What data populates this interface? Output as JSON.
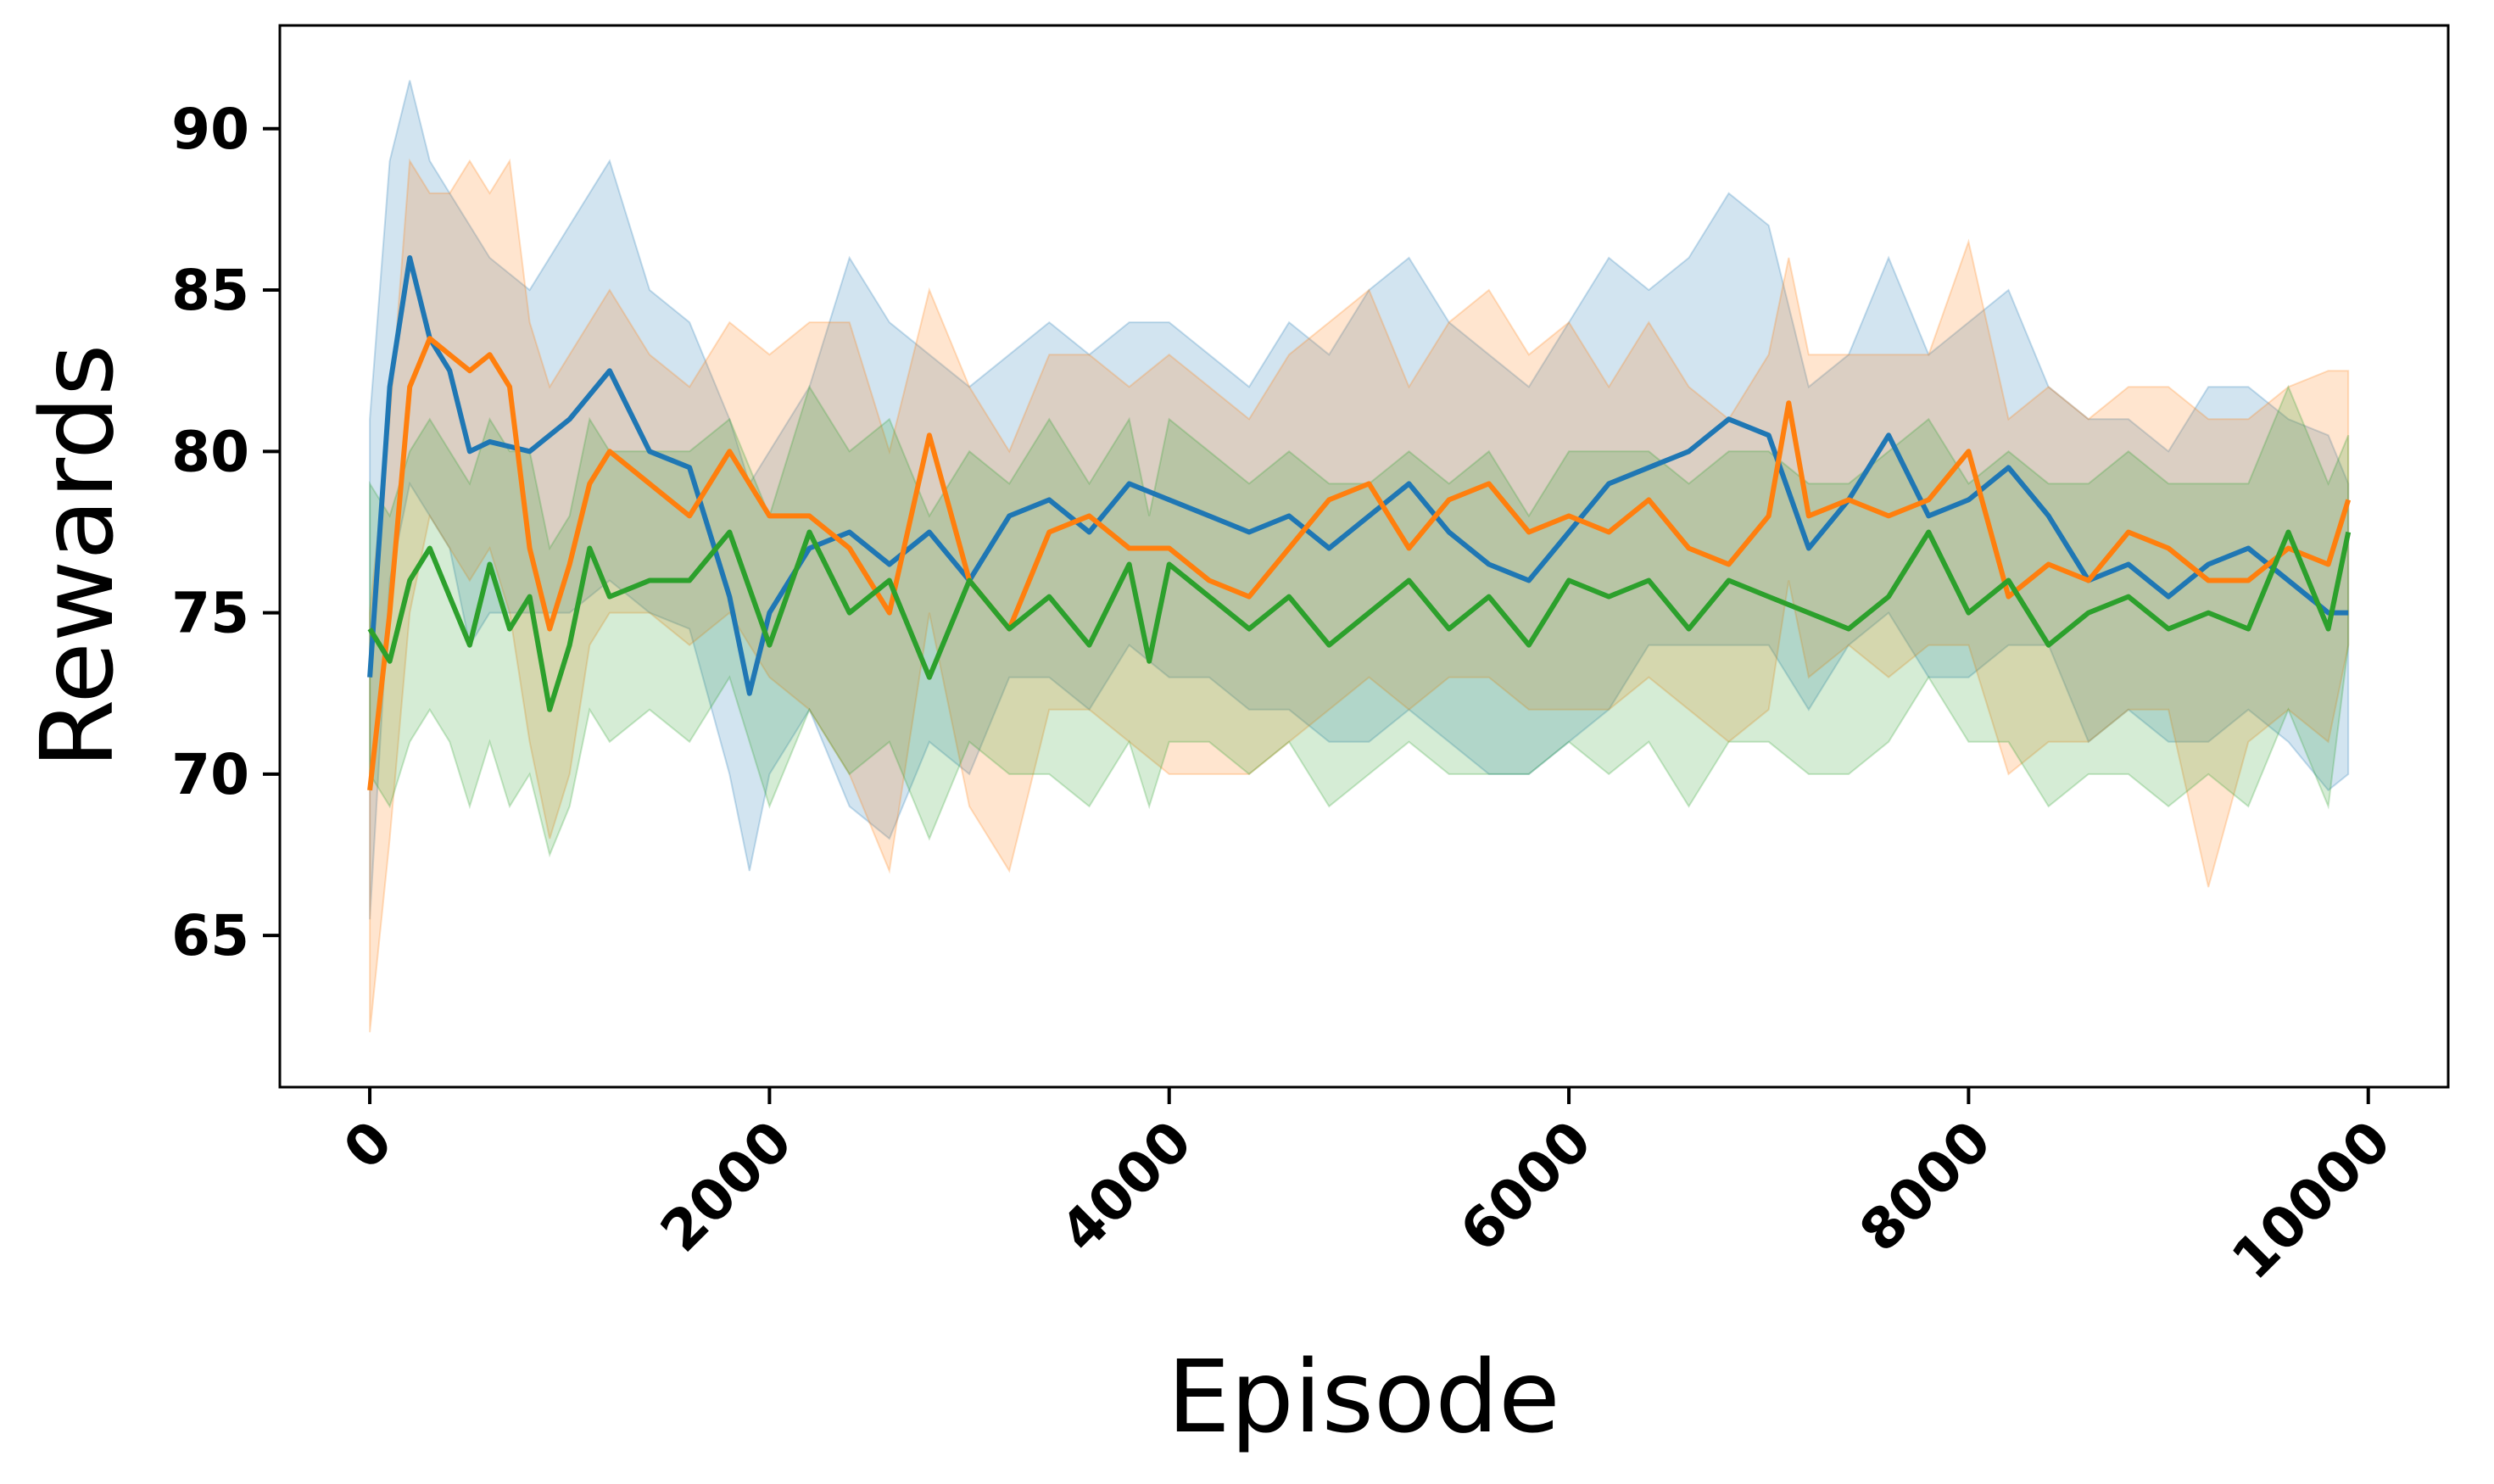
{
  "chart_data": {
    "type": "line",
    "xlabel": "Episode",
    "ylabel": "Rewards",
    "xlim": [
      -450,
      10400
    ],
    "ylim": [
      60.3,
      93.2
    ],
    "x_ticks": [
      0,
      2000,
      4000,
      6000,
      8000,
      10000
    ],
    "x_tick_labels": [
      "0",
      "2000",
      "4000",
      "6000",
      "8000",
      "10000"
    ],
    "y_ticks": [
      65,
      70,
      75,
      80,
      85,
      90
    ],
    "y_tick_labels": [
      "65",
      "70",
      "75",
      "80",
      "85",
      "90"
    ],
    "grid": false,
    "legend": "none",
    "series": [
      {
        "color": "#1f77b4",
        "x": [
          0,
          100,
          200,
          300,
          400,
          500,
          600,
          800,
          1000,
          1200,
          1400,
          1600,
          1800,
          1900,
          2000,
          2200,
          2400,
          2600,
          2800,
          3000,
          3200,
          3400,
          3600,
          3800,
          4000,
          4200,
          4400,
          4600,
          4800,
          5000,
          5200,
          5400,
          5600,
          5800,
          6000,
          6200,
          6400,
          6600,
          6800,
          7000,
          7200,
          7400,
          7600,
          7800,
          8000,
          8200,
          8400,
          8600,
          8800,
          9000,
          9200,
          9400,
          9600,
          9800,
          9900
        ],
        "y": [
          73.0,
          82.0,
          86.0,
          83.5,
          82.5,
          80.0,
          80.3,
          80.0,
          81.0,
          82.5,
          80.0,
          79.5,
          75.5,
          72.5,
          75.0,
          77.0,
          77.5,
          76.5,
          77.5,
          76.0,
          78.0,
          78.5,
          77.5,
          79.0,
          78.5,
          78.0,
          77.5,
          78.0,
          77.0,
          78.0,
          79.0,
          77.5,
          76.5,
          76.0,
          77.5,
          79.0,
          79.5,
          80.0,
          81.0,
          80.5,
          77.0,
          78.5,
          80.5,
          78.0,
          78.5,
          79.5,
          78.0,
          76.0,
          76.5,
          75.5,
          76.5,
          77.0,
          76.0,
          75.0,
          75.0
        ],
        "upper": [
          81.0,
          89.0,
          91.5,
          89.0,
          88.0,
          87.0,
          86.0,
          85.0,
          87.0,
          89.0,
          85.0,
          84.0,
          81.0,
          79.0,
          80.0,
          82.0,
          86.0,
          84.0,
          83.0,
          82.0,
          83.0,
          84.0,
          83.0,
          84.0,
          84.0,
          83.0,
          82.0,
          84.0,
          83.0,
          85.0,
          86.0,
          84.0,
          83.0,
          82.0,
          84.0,
          86.0,
          85.0,
          86.0,
          88.0,
          87.0,
          82.0,
          83.0,
          86.0,
          83.0,
          84.0,
          85.0,
          82.0,
          81.0,
          81.0,
          80.0,
          82.0,
          82.0,
          81.0,
          80.5,
          79.0
        ],
        "lower": [
          65.5,
          76.0,
          79.0,
          78.0,
          77.0,
          74.0,
          75.0,
          75.0,
          75.0,
          76.0,
          75.0,
          74.5,
          70.0,
          67.0,
          70.0,
          72.0,
          69.0,
          68.0,
          71.0,
          70.0,
          73.0,
          73.0,
          72.0,
          74.0,
          73.0,
          73.0,
          72.0,
          72.0,
          71.0,
          71.0,
          72.0,
          71.0,
          70.0,
          70.0,
          71.0,
          72.0,
          74.0,
          74.0,
          74.0,
          74.0,
          72.0,
          74.0,
          75.0,
          73.0,
          73.0,
          74.0,
          74.0,
          71.0,
          72.0,
          71.0,
          71.0,
          72.0,
          71.0,
          69.5,
          70.0
        ]
      },
      {
        "color": "#ff7f0e",
        "x": [
          0,
          100,
          200,
          300,
          400,
          500,
          600,
          700,
          800,
          900,
          1000,
          1100,
          1200,
          1400,
          1600,
          1800,
          2000,
          2200,
          2400,
          2600,
          2800,
          3000,
          3200,
          3400,
          3600,
          3800,
          4000,
          4200,
          4400,
          4600,
          4800,
          5000,
          5200,
          5400,
          5600,
          5800,
          6000,
          6200,
          6400,
          6600,
          6800,
          7000,
          7100,
          7200,
          7400,
          7600,
          7800,
          8000,
          8200,
          8400,
          8600,
          8800,
          9000,
          9200,
          9400,
          9600,
          9800,
          9900
        ],
        "y": [
          69.5,
          75.0,
          82.0,
          83.5,
          83.0,
          82.5,
          83.0,
          82.0,
          77.0,
          74.5,
          76.5,
          79.0,
          80.0,
          79.0,
          78.0,
          80.0,
          78.0,
          78.0,
          77.0,
          75.0,
          80.5,
          76.0,
          74.5,
          77.5,
          78.0,
          77.0,
          77.0,
          76.0,
          75.5,
          77.0,
          78.5,
          79.0,
          77.0,
          78.5,
          79.0,
          77.5,
          78.0,
          77.5,
          78.5,
          77.0,
          76.5,
          78.0,
          81.5,
          78.0,
          78.5,
          78.0,
          78.5,
          80.0,
          75.5,
          76.5,
          76.0,
          77.5,
          77.0,
          76.0,
          76.0,
          77.0,
          76.5,
          78.5
        ],
        "upper": [
          75.0,
          81.0,
          89.0,
          88.0,
          88.0,
          89.0,
          88.0,
          89.0,
          84.0,
          82.0,
          83.0,
          84.0,
          85.0,
          83.0,
          82.0,
          84.0,
          83.0,
          84.0,
          84.0,
          80.0,
          85.0,
          82.0,
          80.0,
          83.0,
          83.0,
          82.0,
          83.0,
          82.0,
          81.0,
          83.0,
          84.0,
          85.0,
          82.0,
          84.0,
          85.0,
          83.0,
          84.0,
          82.0,
          84.0,
          82.0,
          81.0,
          83.0,
          86.0,
          83.0,
          83.0,
          83.0,
          83.0,
          86.5,
          81.0,
          82.0,
          81.0,
          82.0,
          82.0,
          81.0,
          81.0,
          82.0,
          82.5,
          82.5
        ],
        "lower": [
          62.0,
          68.0,
          75.0,
          78.0,
          77.0,
          76.0,
          77.0,
          75.0,
          71.0,
          68.0,
          70.0,
          74.0,
          75.0,
          75.0,
          74.0,
          75.0,
          73.0,
          72.0,
          70.0,
          67.0,
          75.0,
          69.0,
          67.0,
          72.0,
          72.0,
          71.0,
          70.0,
          70.0,
          70.0,
          71.0,
          72.0,
          73.0,
          72.0,
          73.0,
          73.0,
          72.0,
          72.0,
          72.0,
          73.0,
          72.0,
          71.0,
          72.0,
          76.0,
          73.0,
          74.0,
          73.0,
          74.0,
          74.0,
          70.0,
          71.0,
          71.0,
          72.0,
          72.0,
          66.5,
          71.0,
          72.0,
          71.0,
          74.0
        ]
      },
      {
        "color": "#2ca02c",
        "x": [
          0,
          100,
          200,
          300,
          400,
          500,
          600,
          700,
          800,
          900,
          1000,
          1100,
          1200,
          1400,
          1600,
          1800,
          2000,
          2200,
          2400,
          2600,
          2800,
          3000,
          3200,
          3400,
          3600,
          3800,
          3900,
          4000,
          4200,
          4400,
          4600,
          4800,
          5000,
          5200,
          5400,
          5600,
          5800,
          6000,
          6200,
          6400,
          6600,
          6800,
          7000,
          7200,
          7400,
          7600,
          7800,
          8000,
          8200,
          8400,
          8600,
          8800,
          9000,
          9200,
          9400,
          9600,
          9800,
          9900
        ],
        "y": [
          74.5,
          73.5,
          76.0,
          77.0,
          75.5,
          74.0,
          76.5,
          74.5,
          75.5,
          72.0,
          74.0,
          77.0,
          75.5,
          76.0,
          76.0,
          77.5,
          74.0,
          77.5,
          75.0,
          76.0,
          73.0,
          76.0,
          74.5,
          75.5,
          74.0,
          76.5,
          73.5,
          76.5,
          75.5,
          74.5,
          75.5,
          74.0,
          75.0,
          76.0,
          74.5,
          75.5,
          74.0,
          76.0,
          75.5,
          76.0,
          74.5,
          76.0,
          75.5,
          75.0,
          74.5,
          75.5,
          77.5,
          75.0,
          76.0,
          74.0,
          75.0,
          75.5,
          74.5,
          75.0,
          74.5,
          77.5,
          74.5,
          77.5
        ],
        "upper": [
          79.0,
          78.0,
          80.0,
          81.0,
          80.0,
          79.0,
          81.0,
          80.0,
          80.0,
          77.0,
          78.0,
          81.0,
          80.0,
          80.0,
          80.0,
          81.0,
          78.0,
          82.0,
          80.0,
          81.0,
          78.0,
          80.0,
          79.0,
          81.0,
          79.0,
          81.0,
          78.0,
          81.0,
          80.0,
          79.0,
          80.0,
          79.0,
          79.0,
          80.0,
          79.0,
          80.0,
          78.0,
          80.0,
          80.0,
          80.0,
          79.0,
          80.0,
          80.0,
          79.0,
          79.0,
          80.0,
          81.0,
          79.0,
          80.0,
          79.0,
          79.0,
          80.0,
          79.0,
          79.0,
          79.0,
          82.0,
          79.0,
          80.5
        ],
        "lower": [
          70.0,
          69.0,
          71.0,
          72.0,
          71.0,
          69.0,
          71.0,
          69.0,
          70.0,
          67.5,
          69.0,
          72.0,
          71.0,
          72.0,
          71.0,
          73.0,
          69.0,
          72.0,
          70.0,
          71.0,
          68.0,
          71.0,
          70.0,
          70.0,
          69.0,
          71.0,
          69.0,
          71.0,
          71.0,
          70.0,
          71.0,
          69.0,
          70.0,
          71.0,
          70.0,
          70.0,
          70.0,
          71.0,
          70.0,
          71.0,
          69.0,
          71.0,
          71.0,
          70.0,
          70.0,
          71.0,
          73.0,
          71.0,
          71.0,
          69.0,
          70.0,
          70.0,
          69.0,
          70.0,
          69.0,
          72.0,
          69.0,
          74.0
        ]
      }
    ]
  }
}
